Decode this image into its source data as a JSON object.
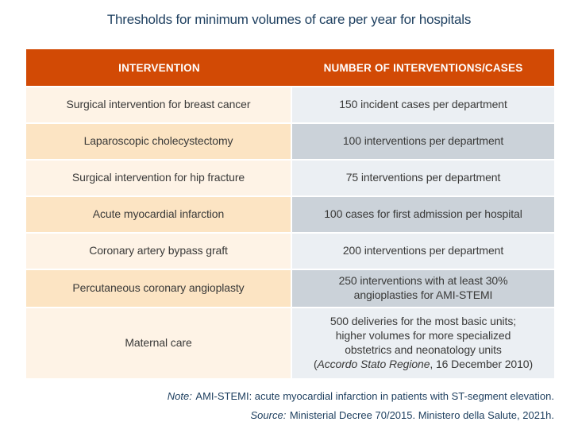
{
  "title": "Thresholds for minimum volumes of care per year for hospitals",
  "colors": {
    "header-bg": "#d24a05",
    "header-text": "#ffffff",
    "row-odd-left": "#fce4c3",
    "row-even-left": "#fef3e6",
    "row-odd-right": "#cbd2d9",
    "row-even-right": "#ebeff3",
    "title-text": "#1f4060",
    "cell-text": "#3a3a39"
  },
  "table": {
    "columns": [
      "INTERVENTION",
      "NUMBER OF INTERVENTIONS/CASES"
    ],
    "rows": [
      {
        "intervention": "Surgical intervention for breast cancer",
        "value_lines": [
          [
            {
              "text": "150 incident cases per department",
              "italic": false
            }
          ]
        ]
      },
      {
        "intervention": "Laparoscopic cholecystectomy",
        "value_lines": [
          [
            {
              "text": "100 interventions per department",
              "italic": false
            }
          ]
        ]
      },
      {
        "intervention": "Surgical intervention for hip fracture",
        "value_lines": [
          [
            {
              "text": "75 interventions per department",
              "italic": false
            }
          ]
        ]
      },
      {
        "intervention": "Acute myocardial infarction",
        "value_lines": [
          [
            {
              "text": "100 cases for first admission per hospital",
              "italic": false
            }
          ]
        ]
      },
      {
        "intervention": "Coronary artery bypass graft",
        "value_lines": [
          [
            {
              "text": "200 interventions per department",
              "italic": false
            }
          ]
        ]
      },
      {
        "intervention": "Percutaneous coronary angioplasty",
        "value_lines": [
          [
            {
              "text": "250 interventions with at least 30%",
              "italic": false
            }
          ],
          [
            {
              "text": "angioplasties for AMI-STEMI",
              "italic": false
            }
          ]
        ]
      },
      {
        "intervention": "Maternal care",
        "value_lines": [
          [
            {
              "text": "500 deliveries for the most basic units;",
              "italic": false
            }
          ],
          [
            {
              "text": "higher volumes for more specialized",
              "italic": false
            }
          ],
          [
            {
              "text": "obstetrics and neonatology units",
              "italic": false
            }
          ],
          [
            {
              "text": "(",
              "italic": false
            },
            {
              "text": "Accordo Stato Regione",
              "italic": true
            },
            {
              "text": ", 16 December 2010)",
              "italic": false
            }
          ]
        ]
      }
    ]
  },
  "note": {
    "label": "Note:",
    "text": "AMI-STEMI: acute myocardial infarction in patients with ST-segment elevation."
  },
  "source": {
    "label": "Source:",
    "text": "Ministerial Decree 70/2015. Ministero della Salute, 2021h."
  }
}
